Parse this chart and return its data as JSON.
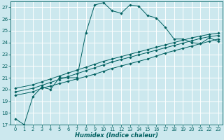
{
  "xlabel": "Humidex (Indice chaleur)",
  "bg_color": "#cce8ee",
  "line_color": "#006060",
  "grid_color": "#ffffff",
  "xlim": [
    -0.5,
    23.5
  ],
  "ylim": [
    17,
    27.5
  ],
  "yticks": [
    17,
    18,
    19,
    20,
    21,
    22,
    23,
    24,
    25,
    26,
    27
  ],
  "xticks": [
    0,
    1,
    2,
    3,
    4,
    5,
    6,
    7,
    8,
    9,
    10,
    11,
    12,
    13,
    14,
    15,
    16,
    17,
    18,
    19,
    20,
    21,
    22,
    23
  ],
  "lines": [
    {
      "x": [
        0,
        1,
        2,
        3,
        4,
        5,
        6,
        7,
        8,
        9,
        10,
        11,
        12,
        13,
        14,
        15,
        16,
        17,
        18,
        19,
        20,
        21,
        22,
        23
      ],
      "y": [
        17.5,
        17.0,
        19.4,
        20.2,
        20.0,
        21.0,
        21.0,
        21.0,
        24.8,
        27.2,
        27.4,
        26.7,
        26.5,
        27.2,
        27.1,
        26.3,
        26.1,
        25.3,
        24.3,
        24.3,
        24.0,
        23.9,
        24.4,
        24.1
      ]
    },
    {
      "x": [
        0,
        2,
        3,
        4,
        5,
        6,
        7,
        8,
        9,
        10,
        11,
        12,
        13,
        14,
        15,
        16,
        17,
        18,
        19,
        20,
        21,
        22,
        23
      ],
      "y": [
        19.5,
        19.8,
        20.1,
        20.3,
        20.5,
        20.7,
        20.9,
        21.1,
        21.3,
        21.55,
        21.8,
        22.0,
        22.2,
        22.4,
        22.6,
        22.85,
        23.1,
        23.3,
        23.5,
        23.7,
        23.9,
        24.1,
        24.3
      ]
    },
    {
      "x": [
        0,
        2,
        3,
        4,
        5,
        6,
        7,
        8,
        9,
        10,
        11,
        12,
        13,
        14,
        15,
        16,
        17,
        18,
        19,
        20,
        21,
        22,
        23
      ],
      "y": [
        19.8,
        20.1,
        20.35,
        20.6,
        20.85,
        21.1,
        21.35,
        21.6,
        21.85,
        22.1,
        22.35,
        22.55,
        22.75,
        22.95,
        23.15,
        23.35,
        23.55,
        23.75,
        23.95,
        24.15,
        24.35,
        24.5,
        24.6
      ]
    },
    {
      "x": [
        0,
        2,
        3,
        4,
        5,
        6,
        7,
        8,
        9,
        10,
        11,
        12,
        13,
        14,
        15,
        16,
        17,
        18,
        19,
        20,
        21,
        22,
        23
      ],
      "y": [
        20.1,
        20.4,
        20.65,
        20.9,
        21.15,
        21.4,
        21.65,
        21.9,
        22.15,
        22.4,
        22.6,
        22.8,
        23.0,
        23.2,
        23.4,
        23.6,
        23.8,
        24.0,
        24.2,
        24.4,
        24.55,
        24.7,
        24.8
      ]
    }
  ]
}
